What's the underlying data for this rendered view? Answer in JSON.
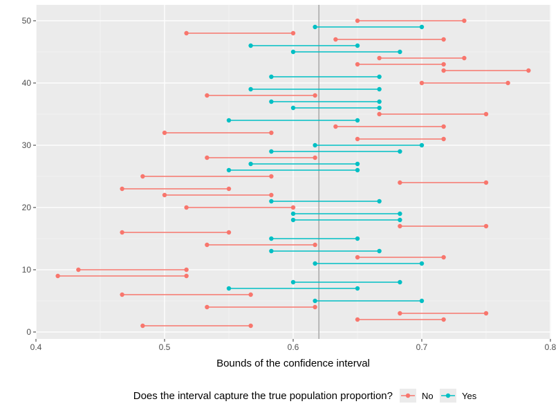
{
  "chart_data": {
    "type": "interval",
    "xlabel": "Bounds of the confidence interval",
    "ylabel": "",
    "xlim": [
      0.4,
      0.8
    ],
    "ylim": [
      0,
      51
    ],
    "x_ticks": [
      "0.4",
      "0.5",
      "0.6",
      "0.7",
      "0.8"
    ],
    "y_ticks": [
      "0",
      "10",
      "20",
      "30",
      "40",
      "50"
    ],
    "x_tick_values": [
      0.4,
      0.5,
      0.6,
      0.7,
      0.8
    ],
    "y_tick_values": [
      0,
      10,
      20,
      30,
      40,
      50
    ],
    "reference_line": 0.62,
    "grid": true,
    "legend": {
      "title": "Does the interval capture the true population proportion?",
      "position": "bottom",
      "entries": [
        {
          "key": "no",
          "label": "No",
          "color": "#F8766D"
        },
        {
          "key": "yes",
          "label": "Yes",
          "color": "#00BFC4"
        }
      ]
    },
    "intervals": [
      {
        "y": 1,
        "lower": 0.483,
        "upper": 0.567,
        "captures": "no"
      },
      {
        "y": 2,
        "lower": 0.65,
        "upper": 0.717,
        "captures": "no"
      },
      {
        "y": 3,
        "lower": 0.683,
        "upper": 0.75,
        "captures": "no"
      },
      {
        "y": 4,
        "lower": 0.533,
        "upper": 0.617,
        "captures": "no"
      },
      {
        "y": 5,
        "lower": 0.617,
        "upper": 0.7,
        "captures": "yes"
      },
      {
        "y": 6,
        "lower": 0.467,
        "upper": 0.567,
        "captures": "no"
      },
      {
        "y": 7,
        "lower": 0.55,
        "upper": 0.65,
        "captures": "yes"
      },
      {
        "y": 8,
        "lower": 0.6,
        "upper": 0.683,
        "captures": "yes"
      },
      {
        "y": 9,
        "lower": 0.417,
        "upper": 0.517,
        "captures": "no"
      },
      {
        "y": 10,
        "lower": 0.433,
        "upper": 0.517,
        "captures": "no"
      },
      {
        "y": 11,
        "lower": 0.617,
        "upper": 0.7,
        "captures": "yes"
      },
      {
        "y": 12,
        "lower": 0.65,
        "upper": 0.717,
        "captures": "no"
      },
      {
        "y": 13,
        "lower": 0.583,
        "upper": 0.667,
        "captures": "yes"
      },
      {
        "y": 14,
        "lower": 0.533,
        "upper": 0.617,
        "captures": "no"
      },
      {
        "y": 15,
        "lower": 0.583,
        "upper": 0.65,
        "captures": "yes"
      },
      {
        "y": 16,
        "lower": 0.467,
        "upper": 0.55,
        "captures": "no"
      },
      {
        "y": 17,
        "lower": 0.683,
        "upper": 0.75,
        "captures": "no"
      },
      {
        "y": 18,
        "lower": 0.6,
        "upper": 0.683,
        "captures": "yes"
      },
      {
        "y": 19,
        "lower": 0.6,
        "upper": 0.683,
        "captures": "yes"
      },
      {
        "y": 20,
        "lower": 0.517,
        "upper": 0.6,
        "captures": "no"
      },
      {
        "y": 21,
        "lower": 0.583,
        "upper": 0.667,
        "captures": "yes"
      },
      {
        "y": 22,
        "lower": 0.5,
        "upper": 0.583,
        "captures": "no"
      },
      {
        "y": 23,
        "lower": 0.467,
        "upper": 0.55,
        "captures": "no"
      },
      {
        "y": 24,
        "lower": 0.683,
        "upper": 0.75,
        "captures": "no"
      },
      {
        "y": 25,
        "lower": 0.483,
        "upper": 0.583,
        "captures": "no"
      },
      {
        "y": 26,
        "lower": 0.55,
        "upper": 0.65,
        "captures": "yes"
      },
      {
        "y": 27,
        "lower": 0.567,
        "upper": 0.65,
        "captures": "yes"
      },
      {
        "y": 28,
        "lower": 0.533,
        "upper": 0.617,
        "captures": "no"
      },
      {
        "y": 29,
        "lower": 0.583,
        "upper": 0.683,
        "captures": "yes"
      },
      {
        "y": 30,
        "lower": 0.617,
        "upper": 0.7,
        "captures": "yes"
      },
      {
        "y": 31,
        "lower": 0.65,
        "upper": 0.717,
        "captures": "no"
      },
      {
        "y": 32,
        "lower": 0.5,
        "upper": 0.583,
        "captures": "no"
      },
      {
        "y": 33,
        "lower": 0.633,
        "upper": 0.717,
        "captures": "no"
      },
      {
        "y": 34,
        "lower": 0.55,
        "upper": 0.65,
        "captures": "yes"
      },
      {
        "y": 35,
        "lower": 0.667,
        "upper": 0.75,
        "captures": "no"
      },
      {
        "y": 36,
        "lower": 0.6,
        "upper": 0.667,
        "captures": "yes"
      },
      {
        "y": 37,
        "lower": 0.583,
        "upper": 0.667,
        "captures": "yes"
      },
      {
        "y": 38,
        "lower": 0.533,
        "upper": 0.617,
        "captures": "no"
      },
      {
        "y": 39,
        "lower": 0.567,
        "upper": 0.667,
        "captures": "yes"
      },
      {
        "y": 40,
        "lower": 0.7,
        "upper": 0.767,
        "captures": "no"
      },
      {
        "y": 41,
        "lower": 0.583,
        "upper": 0.667,
        "captures": "yes"
      },
      {
        "y": 42,
        "lower": 0.717,
        "upper": 0.783,
        "captures": "no"
      },
      {
        "y": 43,
        "lower": 0.65,
        "upper": 0.717,
        "captures": "no"
      },
      {
        "y": 44,
        "lower": 0.667,
        "upper": 0.733,
        "captures": "no"
      },
      {
        "y": 45,
        "lower": 0.6,
        "upper": 0.683,
        "captures": "yes"
      },
      {
        "y": 46,
        "lower": 0.567,
        "upper": 0.65,
        "captures": "yes"
      },
      {
        "y": 47,
        "lower": 0.633,
        "upper": 0.717,
        "captures": "no"
      },
      {
        "y": 48,
        "lower": 0.517,
        "upper": 0.6,
        "captures": "no"
      },
      {
        "y": 49,
        "lower": 0.617,
        "upper": 0.7,
        "captures": "yes"
      },
      {
        "y": 50,
        "lower": 0.65,
        "upper": 0.733,
        "captures": "no"
      }
    ]
  },
  "theme": {
    "panel_background": "#EBEBEB",
    "grid_major": "#FFFFFF",
    "reference_line_color": "#A6A6A6"
  }
}
